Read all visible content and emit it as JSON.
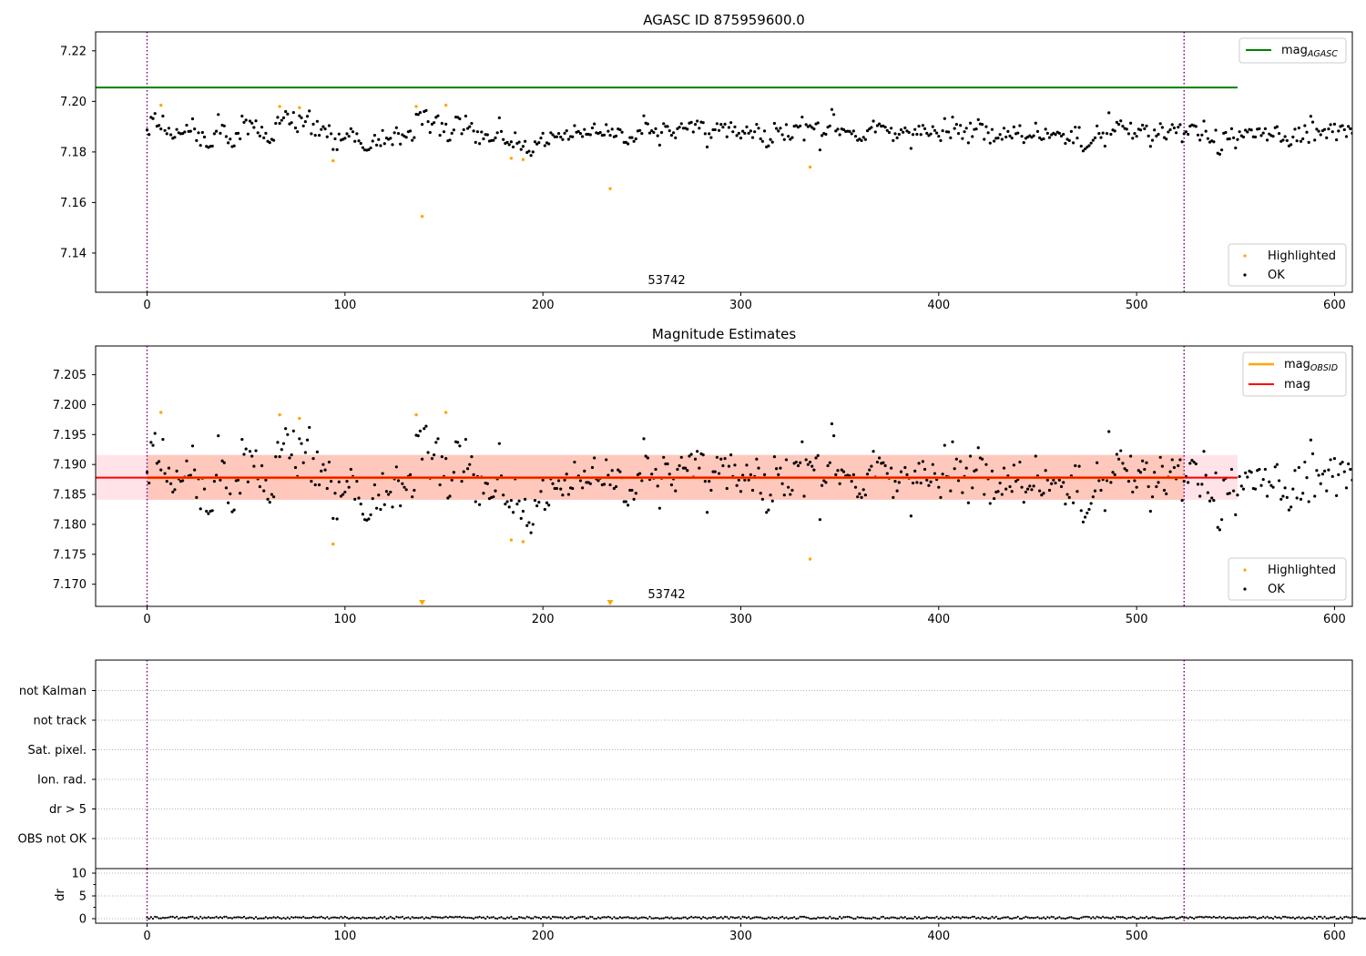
{
  "colors": {
    "ok": "#000000",
    "highlighted": "#ffa500",
    "mag_agasc": "#008000",
    "mag": "#ff0000",
    "mag_obsid": "#ffa500",
    "band_outer": "#ffc0cb",
    "band_inner": "#ffa07a",
    "vline": "#800080"
  },
  "chart_data": [
    {
      "type": "scatter",
      "title": "AGASC ID 875959600.0",
      "annotation": "53742",
      "xlabel": "",
      "ylabel": "",
      "xlim": [
        -26,
        609
      ],
      "ylim": [
        7.1245,
        7.2275
      ],
      "x_ticks": [
        0,
        100,
        200,
        300,
        400,
        500,
        600
      ],
      "y_ticks": [
        7.14,
        7.16,
        7.18,
        7.2,
        7.22
      ],
      "y_tick_labels": [
        "7.14",
        "7.16",
        "7.18",
        "7.20",
        "7.22"
      ],
      "grid": false,
      "vlines": [
        0,
        524
      ],
      "hlines": [
        {
          "name": "mag_AGASC",
          "y": 7.2055,
          "x": [
            -26,
            551
          ]
        }
      ],
      "legend_upper": {
        "placement": "top-right",
        "entries": [
          {
            "label": "mag",
            "sub": "AGASC",
            "kind": "line",
            "color": "mag_agasc"
          }
        ]
      },
      "legend_lower": {
        "placement": "bottom-right",
        "entries": [
          {
            "label": "Highlighted",
            "kind": "dot",
            "color": "highlighted"
          },
          {
            "label": "OK",
            "kind": "dot",
            "color": "ok"
          }
        ]
      },
      "ok_series": "shared.ok_points",
      "highlighted_points": [
        {
          "x": 7,
          "y": 7.1985
        },
        {
          "x": 67,
          "y": 7.198
        },
        {
          "x": 77,
          "y": 7.1975
        },
        {
          "x": 94,
          "y": 7.1765
        },
        {
          "x": 136,
          "y": 7.198
        },
        {
          "x": 139,
          "y": 7.1545
        },
        {
          "x": 151,
          "y": 7.1985
        },
        {
          "x": 184,
          "y": 7.1775
        },
        {
          "x": 190,
          "y": 7.177
        },
        {
          "x": 234,
          "y": 7.1655
        },
        {
          "x": 335,
          "y": 7.174
        }
      ]
    },
    {
      "type": "scatter",
      "title": "Magnitude Estimates",
      "annotation": "53742",
      "xlabel": "",
      "ylabel": "",
      "xlim": [
        -26,
        609
      ],
      "ylim": [
        7.1663,
        7.2098
      ],
      "x_ticks": [
        0,
        100,
        200,
        300,
        400,
        500,
        600
      ],
      "y_ticks": [
        7.17,
        7.175,
        7.18,
        7.185,
        7.19,
        7.195,
        7.2,
        7.205
      ],
      "y_tick_labels": [
        "7.170",
        "7.175",
        "7.180",
        "7.185",
        "7.190",
        "7.195",
        "7.200",
        "7.205"
      ],
      "grid": false,
      "vlines": [
        0,
        524
      ],
      "bands": [
        {
          "name": "mag range",
          "y": [
            7.1841,
            7.1916
          ],
          "x": [
            -26,
            551
          ],
          "color": "band_outer"
        },
        {
          "name": "mag_OBSID range",
          "y": [
            7.1841,
            7.1916
          ],
          "x": [
            0,
            524
          ],
          "color": "band_inner"
        }
      ],
      "hlines": [
        {
          "name": "mag_OBSID",
          "y": 7.1878,
          "x": [
            0,
            524
          ],
          "color": "mag_obsid"
        },
        {
          "name": "mag",
          "y": 7.1878,
          "x": [
            -26,
            551
          ],
          "color": "mag"
        }
      ],
      "legend_upper": {
        "placement": "top-right",
        "entries": [
          {
            "label": "mag",
            "sub": "OBSID",
            "kind": "line",
            "color": "mag_obsid"
          },
          {
            "label": "mag",
            "kind": "line",
            "color": "mag"
          }
        ]
      },
      "legend_lower": {
        "placement": "bottom-right",
        "entries": [
          {
            "label": "Highlighted",
            "kind": "dot",
            "color": "highlighted"
          },
          {
            "label": "OK",
            "kind": "dot",
            "color": "ok"
          }
        ]
      },
      "ok_series": "shared.ok_points",
      "highlighted_points": [
        {
          "x": 7,
          "y": 7.1987
        },
        {
          "x": 67,
          "y": 7.1983
        },
        {
          "x": 77,
          "y": 7.1977
        },
        {
          "x": 94,
          "y": 7.1767
        },
        {
          "x": 136,
          "y": 7.1983
        },
        {
          "x": 151,
          "y": 7.1987
        },
        {
          "x": 184,
          "y": 7.1774
        },
        {
          "x": 190,
          "y": 7.1771
        },
        {
          "x": 335,
          "y": 7.1742
        }
      ],
      "off_scale_markers": [
        {
          "x": 139
        },
        {
          "x": 234
        }
      ]
    },
    {
      "type": "scatter",
      "title": "",
      "xlabel": "",
      "ylabel": "",
      "xlim": [
        -26,
        609
      ],
      "categories": [
        "OBS not OK",
        "dr > 5",
        "Ion. rad.",
        "Sat. pixel.",
        "not track",
        "not Kalman"
      ],
      "grid": true,
      "vlines": [
        0,
        524
      ],
      "flag_points": []
    },
    {
      "type": "line",
      "title": "",
      "xlabel": "",
      "ylabel": "dr",
      "xlim": [
        -26,
        609
      ],
      "ylim": [
        -1,
        11
      ],
      "x_ticks": [
        0,
        100,
        200,
        300,
        400,
        500,
        600
      ],
      "y_ticks": [
        0,
        5,
        10
      ],
      "y_tick_labels": [
        "0",
        "5",
        "10"
      ],
      "grid": true,
      "vlines": [
        0,
        524
      ],
      "series": [
        {
          "name": "dr",
          "description": "per-sample dr values, all between 0.0 and 0.5",
          "range": [
            0.0,
            0.5
          ]
        }
      ]
    }
  ],
  "shared": {
    "ok_points": "x = 0..524 (one sample per index), y values in magnitude listed in ok_y (index = x)",
    "ok_y": [
      7.1887,
      7.1869,
      7.1937,
      7.1932,
      7.1952,
      7.1902,
      7.1905,
      7.1891,
      7.1942,
      7.1885,
      7.1872,
      7.1894,
      7.1868,
      7.1854,
      7.1858,
      7.1889,
      7.1876,
      7.1872,
      7.1873,
      7.1879,
      7.1906,
      7.1881,
      7.1882,
      7.1931,
      7.1891,
      7.1845,
      7.1876,
      7.1826,
      7.1877,
      7.1859,
      7.1822,
      7.1818,
      7.1822,
      7.1823,
      7.1872,
      7.1882,
      7.1948,
      7.1874,
      7.1906,
      7.1903,
      7.1861,
      7.1836,
      7.1851,
      7.1821,
      7.1824,
      7.1873,
      7.1874,
      7.1852,
      7.1942,
      7.1917,
      7.1926,
      7.1871,
      7.1922,
      7.1914,
      7.1897,
      7.1923,
      7.1876,
      7.1863,
      7.1898,
      7.1856,
      7.1874,
      7.1842,
      7.1837,
      7.185,
      7.1846,
      7.1913,
      7.1937,
      7.1913,
      7.1925,
      7.1935,
      7.196,
      7.195,
      7.1911,
      7.1916,
      7.1956,
      7.1895,
      7.188,
      7.1943,
      7.1935,
      7.1903,
      7.192,
      7.1941,
      7.1962,
      7.1872,
      7.191,
      7.1866,
      7.1921,
      7.1866,
      7.1889,
      7.19,
      7.1891,
      7.186,
      7.1904,
      7.1872,
      7.181,
      7.1852,
      7.1809,
      7.1871,
      7.1847,
      7.185,
      7.1854,
      7.1872,
      7.1862,
      7.1892,
      7.188,
      7.1842,
      7.1872,
      7.1844,
      7.1834,
      7.1817,
      7.1808,
      7.1807,
      7.1809,
      7.1816,
      7.1843,
      7.1866,
      7.1827,
      7.1849,
      7.1825,
      7.1885,
      7.1833,
      7.1855,
      7.185,
      7.1854,
      7.1829,
      7.1876,
      7.1896,
      7.1873,
      7.1831,
      7.1868,
      7.1862,
      7.1858,
      7.188,
      7.1883,
      7.1846,
      7.1857,
      7.1949,
      7.1948,
      7.1956,
      7.1909,
      7.196,
      7.1964,
      7.192,
      7.1877,
      7.191,
      7.1916,
      7.1937,
      7.1943,
      7.1866,
      7.1913,
      7.188,
      7.191,
      7.1844,
      7.1847,
      7.1874,
      7.1887,
      7.1938,
      7.1937,
      7.1931,
      7.1872,
      7.1888,
      7.1942,
      7.1893,
      7.19,
      7.1913,
      7.1883,
      7.1838,
      7.188,
      7.1833,
      7.1879,
      7.1852,
      7.1869,
      7.1868,
      7.1843,
      7.1845,
      7.1846,
      7.1856,
      7.1876,
      7.1935,
      7.1881,
      7.1849,
      7.1834,
      7.1838,
      7.1829,
      7.184,
      7.182,
      7.1876,
      7.1834,
      7.1839,
      7.181,
      7.1822,
      7.1842,
      7.1798,
      7.1803,
      7.1786,
      7.18,
      7.184,
      7.1831,
      7.1837,
      7.1855,
      7.1874,
      7.1825,
      7.1836,
      7.1832,
      7.1876,
      7.1868,
      7.186,
      7.186,
      7.1873,
      7.1859,
      7.1849,
      7.1874,
      7.1884,
      7.185,
      7.1861,
      7.186,
      7.1904,
      7.1878,
      7.1881,
      7.1873,
      7.1861,
      7.1889,
      7.187,
      7.187,
      7.1868,
      7.1895,
      7.1911,
      7.1876,
      7.1873,
      7.1877,
      7.1866,
      7.1867,
      7.1908,
      7.1882,
      7.1866,
      7.189,
      7.186,
      7.1863,
      7.1891,
      7.1888,
      7.1878,
      7.1838,
      7.1838,
      7.1832,
      7.1857,
      7.1857,
      7.1842,
      7.1852,
      7.1883,
      7.1885,
      7.1873,
      7.1943,
      7.1914,
      7.1911,
      7.1875,
      7.1884,
      7.1877,
      7.1892,
      7.1864,
      7.1827,
      7.1877,
      7.1912,
      7.1901,
      7.1901,
      7.1884,
      7.1866,
      7.1876,
      7.1856,
      7.1892,
      7.1898,
      7.1912,
      7.1894,
      7.1894,
      7.189,
      7.1914,
      7.1917,
      7.1879,
      7.1909,
      7.1922,
      7.1894,
      7.1918,
      7.1916,
      7.1872,
      7.182,
      7.1872,
      7.1857,
      7.1888,
      7.1888,
      7.1912,
      7.1885,
      7.1909,
      7.1898,
      7.191,
      7.186,
      7.1897,
      7.1916,
      7.188,
      7.1899,
      7.1865,
      7.1874,
      7.1855,
      7.1882,
      7.1874,
      7.1899,
      7.1874,
      7.1883,
      7.1857,
      7.188,
      7.1909,
      7.1894,
      7.1852,
      7.1842,
      7.1883,
      7.182,
      7.1824,
      7.1849,
      7.1839,
      7.1913,
      7.1893,
      7.1883,
      7.1894,
      7.1868,
      7.1849,
      7.1908,
      7.1862,
      7.185,
      7.1857,
      7.1902,
      7.1904,
      7.1898,
      7.1903,
      7.1938,
      7.1847,
      7.1908,
      7.19,
      7.1904,
      7.1897,
      7.1891,
      7.1911,
      7.1915,
      7.1808,
      7.1865,
      7.1873,
      7.187,
      7.1898,
      7.1903,
      7.1968,
      7.1948,
      7.1883,
      7.189,
      7.1868,
      7.1891,
      7.1888,
      7.1881,
      7.1882,
      7.1881,
      7.1872,
      7.1883,
      7.1862,
      7.1846,
      7.1851,
      7.1845,
      7.1858,
      7.1849,
      7.1884,
      7.1891,
      7.1897,
      7.1922,
      7.1879,
      7.1904,
      7.1911,
      7.1902,
      7.1903,
      7.1898,
      7.1885,
      7.1877,
      7.1894,
      7.1845,
      7.1872,
      7.1856,
      7.187,
      7.1888,
      7.1878,
      7.1895,
      7.1883,
      7.1877,
      7.1814,
      7.1869,
      7.1889,
      7.187,
      7.1902,
      7.1869,
      7.1905,
      7.1892,
      7.1874,
      7.1865,
      7.1871,
      7.19,
      7.1885,
      7.1875,
      7.1862,
      7.1845,
      7.1884,
      7.1932,
      7.188,
      7.1879,
      7.1856,
      7.1938,
      7.1893,
      7.1909,
      7.1873,
      7.1905,
      7.1853,
      7.188,
      7.1894,
      7.1836,
      7.1914,
      7.1861,
      7.1889,
      7.1891,
      7.1928,
      7.1911,
      7.1909,
      7.185,
      7.19,
      7.1876,
      7.1835,
      7.1889,
      7.1843,
      7.1854,
      7.1855,
      7.1869,
      7.185,
      7.1894,
      7.1859,
      7.1881,
      7.1863,
      7.1855,
      7.1899,
      7.1872,
      7.1875,
      7.1904,
      7.1862,
      7.1837,
      7.1854,
      7.1859,
      7.1864,
      7.1858,
      7.1864,
      7.1914,
      7.1881,
      7.1856,
      7.1849,
      7.1852,
      7.189,
      7.1874,
      7.1857,
      7.1868,
      7.1874,
      7.1869,
      7.1878,
      7.1874,
      7.1863,
      7.187,
      7.1834,
      7.185,
      7.1845,
      7.1881,
      7.1836,
      7.1898,
      7.1855,
      7.1897,
      7.1823,
      7.1804,
      7.1812,
      7.1819,
      7.1825,
      7.1835,
      7.1846,
      7.1856,
      7.1903,
      7.1873,
      7.1857,
      7.1875,
      7.1823,
      7.1873,
      7.1955,
      7.187,
      7.1887,
      7.1883,
      7.1917,
      7.1909,
      7.1923,
      7.1902,
      7.1893,
      7.189,
      7.1872,
      7.1914,
      7.1854,
      7.1873,
      7.1862,
      7.189,
      7.1887,
      7.1906,
      7.1892,
      7.1903,
      7.1863,
      7.1822,
      7.1846,
      7.1887,
      7.1863,
      7.187,
      7.1912,
      7.1897,
      7.1857,
      7.1851,
      7.1879,
      7.1888,
      7.1908,
      7.1895,
      7.1876,
      7.1898,
      7.1908,
      7.184,
      7.1872,
      7.188,
      7.187,
      7.1902,
      7.1907,
      7.1904,
      7.1901,
      7.1867,
      7.1847,
      7.1867,
      7.1922,
      7.1882,
      7.1853,
      7.1839,
      7.1844,
      7.184,
      7.1886,
      7.1795,
      7.1791,
      7.1808,
      7.1874,
      7.1877,
      7.1851,
      7.1852,
      7.1892,
      7.1856,
      7.1816,
      7.1849,
      7.188,
      7.1864,
      7.1859,
      7.1886,
      7.1879,
      7.1889,
      7.1887,
      7.186,
      7.1859,
      7.189,
      7.1892,
      7.1865,
      7.1875,
      7.1892,
      7.1847,
      7.1871,
      7.1865,
      7.1862,
      7.1896,
      7.19,
      7.1873,
      7.1842,
      7.1847,
      7.1861,
      7.1845,
      7.1824,
      7.1829,
      7.1859,
      7.189,
      7.1844,
      7.1895,
      7.1842,
      7.1852,
      7.1904,
      7.1878,
      7.1838,
      7.1941,
      7.1918,
      7.1847,
      7.189,
      7.1882,
      7.1868,
      7.1884,
      7.1889,
      7.1856,
      7.1891,
      7.1908,
      7.188,
      7.191,
      7.1848,
      7.1883,
      7.1901,
      7.1904,
      7.1888,
      7.1861,
      7.1901,
      7.1892,
      7.1874,
      7.186,
      7.186,
      7.1898,
      7.189,
      7.187,
      7.1869,
      7.1884,
      7.1878,
      7.1872,
      7.1869,
      7.1884,
      7.1879,
      7.1884,
      7.1832,
      7.1878,
      7.1875,
      7.1876,
      7.1859,
      7.1882,
      7.19,
      7.1878,
      7.1886,
      7.1851,
      7.1858,
      7.1868,
      7.1911,
      7.1834,
      7.1882,
      7.1881,
      7.1851,
      7.1868,
      7.1884,
      7.1842,
      7.1812,
      7.1899,
      7.1903,
      7.1872,
      7.1882,
      7.1891,
      7.1904,
      7.1872,
      7.1902,
      7.1894,
      7.1898,
      7.1877,
      7.187,
      7.1879,
      7.1903,
      7.1907,
      7.192,
      7.1914,
      7.1899,
      7.1928,
      7.1905,
      7.1875
    ]
  }
}
